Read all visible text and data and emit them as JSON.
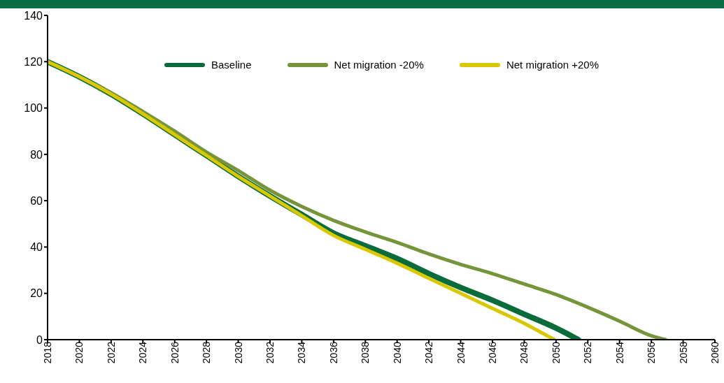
{
  "chart_data": {
    "type": "line",
    "xlim": [
      2018,
      2060
    ],
    "xticks": [
      2018,
      2020,
      2022,
      2024,
      2026,
      2028,
      2030,
      2032,
      2034,
      2036,
      2038,
      2040,
      2042,
      2044,
      2046,
      2048,
      2050,
      2052,
      2054,
      2056,
      2058,
      2060
    ],
    "ylim": [
      0,
      140
    ],
    "yticks": [
      0,
      20,
      40,
      60,
      80,
      100,
      120,
      140
    ],
    "legend": "top",
    "marker": "none",
    "line_style": "solid",
    "series": [
      {
        "name": "Baseline",
        "color": "#0a6b3b",
        "x": [
          2018,
          2020,
          2022,
          2024,
          2026,
          2028,
          2030,
          2032,
          2034,
          2036,
          2038,
          2040,
          2042,
          2044,
          2046,
          2048,
          2050,
          2051.4
        ],
        "values": [
          120,
          113.5,
          106,
          97.5,
          88.5,
          79.5,
          70.5,
          62,
          54,
          46,
          40.5,
          35,
          28.5,
          22.5,
          17,
          11,
          5,
          0
        ]
      },
      {
        "name": "Net migration -20%",
        "color": "#76953b",
        "x": [
          2018,
          2020,
          2022,
          2024,
          2026,
          2028,
          2030,
          2032,
          2034,
          2036,
          2038,
          2040,
          2042,
          2044,
          2046,
          2048,
          2050,
          2052,
          2054,
          2056,
          2056.9
        ],
        "values": [
          120,
          113.5,
          106.5,
          98.5,
          90,
          81,
          73,
          64.5,
          57.5,
          51.5,
          46.5,
          42,
          37,
          32.5,
          28.5,
          24,
          19.5,
          14,
          8,
          1.7,
          0
        ]
      },
      {
        "name": "Net migration +20%",
        "color": "#d9c800",
        "x": [
          2018,
          2020,
          2022,
          2024,
          2026,
          2028,
          2030,
          2032,
          2034,
          2036,
          2038,
          2040,
          2042,
          2044,
          2046,
          2048,
          2049.9
        ],
        "values": [
          120,
          113.5,
          106,
          97.5,
          88.5,
          79.5,
          70.5,
          62,
          53.5,
          45,
          39,
          33,
          26.5,
          20,
          13.5,
          7,
          0
        ]
      }
    ]
  }
}
